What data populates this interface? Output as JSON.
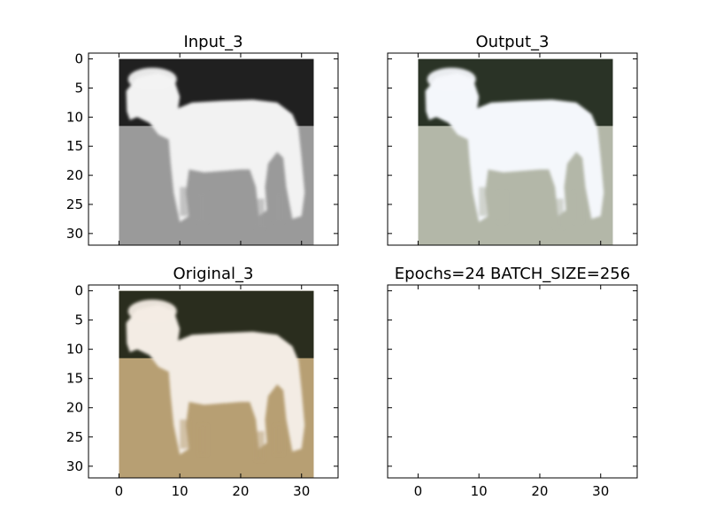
{
  "chart_data": [
    {
      "type": "image",
      "title": "Input_3",
      "image_content": "grayscale photo of a white horse standing in profile, facing left",
      "image_size": [
        32,
        32
      ],
      "extent": [
        0,
        32,
        32,
        0
      ],
      "xlim": [
        -5,
        36
      ],
      "ylim": [
        32,
        -1
      ],
      "xticks": [],
      "yticks": [
        0,
        5,
        10,
        15,
        20,
        25,
        30
      ],
      "colors": {
        "sky": "#202020",
        "ground": "#9a9a9a",
        "horse": "#f2f2f2"
      }
    },
    {
      "type": "image",
      "title": "Output_3",
      "image_content": "colorized reconstruction of the white horse with pale bluish-tan tones",
      "image_size": [
        32,
        32
      ],
      "extent": [
        0,
        32,
        32,
        0
      ],
      "xlim": [
        -5,
        36
      ],
      "ylim": [
        32,
        -1
      ],
      "xticks": [],
      "yticks": [],
      "colors": {
        "sky": "#2a3326",
        "ground": "#b3b7a8",
        "horse": "#f4f7fb"
      }
    },
    {
      "type": "image",
      "title": "Original_3",
      "image_content": "color photo of a white horse standing on dry tan grass with dark trees behind",
      "image_size": [
        32,
        32
      ],
      "extent": [
        0,
        32,
        32,
        0
      ],
      "xlim": [
        -5,
        36
      ],
      "ylim": [
        32,
        -1
      ],
      "xticks": [
        0,
        10,
        20,
        30
      ],
      "yticks": [
        0,
        5,
        10,
        15,
        20,
        25,
        30
      ],
      "colors": {
        "sky": "#2a2d1e",
        "ground": "#b79f73",
        "horse": "#f3ece4"
      }
    },
    {
      "type": "empty",
      "title": "Epochs=24 BATCH_SIZE=256",
      "xlim": [
        -5,
        36
      ],
      "ylim": [
        32,
        -1
      ],
      "xticks": [
        0,
        10,
        20,
        30
      ],
      "yticks": []
    }
  ]
}
